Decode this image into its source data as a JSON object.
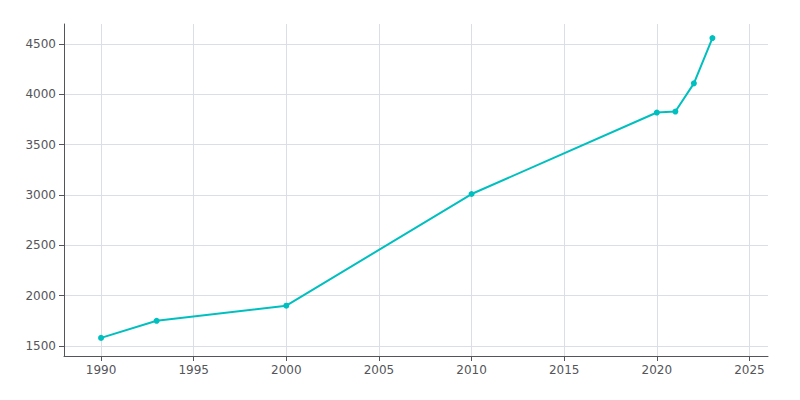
{
  "chart_data": {
    "type": "line",
    "x": [
      1990,
      1993,
      2000,
      2010,
      2020,
      2021,
      2022,
      2023
    ],
    "values": [
      1580,
      1750,
      1900,
      3010,
      3820,
      3830,
      4110,
      4560
    ],
    "color": "#00BFBF",
    "marker": "circle",
    "xlim": [
      1988,
      2026
    ],
    "ylim": [
      1400,
      4700
    ],
    "xticks": [
      1990,
      1995,
      2000,
      2005,
      2010,
      2015,
      2020,
      2025
    ],
    "yticks": [
      1500,
      2000,
      2500,
      3000,
      3500,
      4000,
      4500
    ],
    "grid": true
  }
}
